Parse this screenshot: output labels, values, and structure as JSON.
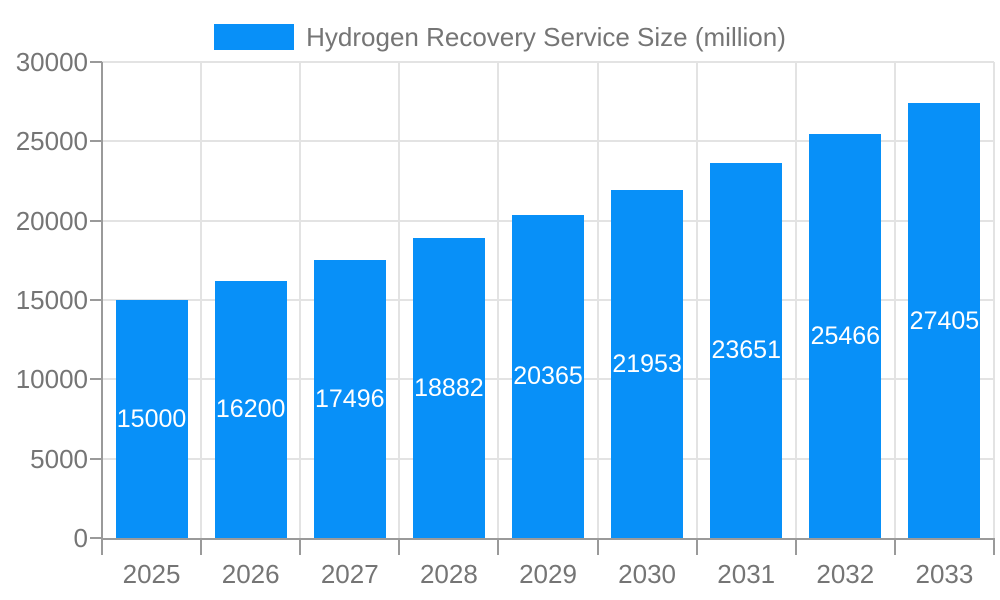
{
  "legend": {
    "label": "Hydrogen Recovery Service Size (million)"
  },
  "colors": {
    "bar": "#0890F8",
    "bar_label": "#FFFFFF",
    "axis": "#9A9A9A",
    "grid": "#E3E3E3",
    "text": "#757575",
    "background": "#FFFFFF"
  },
  "chart_data": {
    "type": "bar",
    "title": "Hydrogen Recovery Service Size (million)",
    "categories": [
      "2025",
      "2026",
      "2027",
      "2028",
      "2029",
      "2030",
      "2031",
      "2032",
      "2033"
    ],
    "values": [
      15000,
      16200,
      17496,
      18882,
      20365,
      21953,
      23651,
      25466,
      27405
    ],
    "xlabel": "",
    "ylabel": "",
    "ylim": [
      0,
      30000
    ],
    "yticks": [
      0,
      5000,
      10000,
      15000,
      20000,
      25000,
      30000
    ],
    "grid": true,
    "legend_position": "top",
    "bar_value_labels": "inside-middle"
  }
}
